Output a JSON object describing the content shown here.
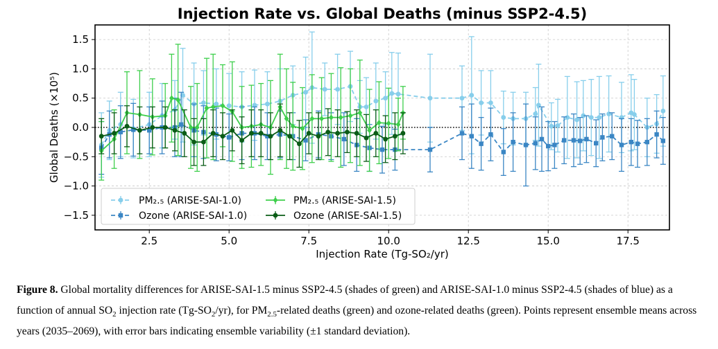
{
  "chart_data": {
    "type": "line",
    "title": "Injection Rate vs. Global Deaths (minus SSP2-4.5)",
    "xlabel": "Injection Rate (Tg-SO₂/yr)",
    "ylabel": "Global Deaths (×10⁵)",
    "xlim": [
      0.8,
      18.8
    ],
    "ylim": [
      -1.75,
      1.75
    ],
    "xticks": [
      2.5,
      5.0,
      7.5,
      10.0,
      12.5,
      15.0,
      17.5
    ],
    "xtick_labels": [
      "2.5",
      "5.0",
      "7.5",
      "10.0",
      "12.5",
      "15.0",
      "17.5"
    ],
    "yticks": [
      1.5,
      1.0,
      0.5,
      0.0,
      -0.5,
      -1.0,
      -1.5
    ],
    "ytick_labels": [
      "1.5",
      "1.0",
      "0.5",
      "0.0",
      "−0.5",
      "−1.0",
      "−1.5"
    ],
    "grid": true,
    "reference_line_y": 0.0,
    "legend": {
      "placement": "lower-left",
      "entries": [
        {
          "label": "PM₂.₅ (ARISE-SAI-1.0)",
          "series": 0
        },
        {
          "label": "Ozone (ARISE-SAI-1.0)",
          "series": 1
        },
        {
          "label": "PM₂.₅ (ARISE-SAI-1.5)",
          "series": 2
        },
        {
          "label": "Ozone (ARISE-SAI-1.5)",
          "series": 3
        }
      ]
    },
    "series": [
      {
        "name": "PM₂.₅ (ARISE-SAI-1.0)",
        "color": "#87ceeb",
        "dash": true,
        "marker": "circle",
        "points": [
          [
            1.0,
            -0.3,
            0.55
          ],
          [
            1.25,
            -0.05,
            0.5
          ],
          [
            1.6,
            0.05,
            0.55
          ],
          [
            2.0,
            -0.02,
            0.5
          ],
          [
            2.5,
            0.05,
            0.55
          ],
          [
            2.9,
            0.2,
            0.55
          ],
          [
            3.3,
            0.3,
            0.5
          ],
          [
            3.55,
            0.55,
            0.8
          ],
          [
            3.9,
            0.4,
            0.7
          ],
          [
            4.2,
            0.42,
            0.55
          ],
          [
            4.6,
            0.4,
            0.6
          ],
          [
            5.0,
            0.37,
            0.55
          ],
          [
            5.4,
            0.35,
            0.6
          ],
          [
            5.8,
            0.38,
            0.6
          ],
          [
            6.2,
            0.4,
            0.55
          ],
          [
            6.6,
            0.45,
            0.55
          ],
          [
            7.0,
            0.55,
            0.5
          ],
          [
            7.4,
            0.6,
            0.6
          ],
          [
            7.6,
            0.68,
            0.95
          ],
          [
            8.0,
            0.65,
            0.45
          ],
          [
            8.4,
            0.65,
            0.6
          ],
          [
            8.8,
            0.7,
            0.6
          ],
          [
            9.1,
            0.35,
            0.45
          ],
          [
            9.3,
            0.35,
            0.5
          ],
          [
            9.6,
            0.45,
            0.65
          ],
          [
            9.9,
            0.5,
            0.45
          ],
          [
            10.1,
            0.58,
            0.7
          ],
          [
            10.3,
            0.57,
            0.7
          ],
          [
            11.3,
            0.5,
            0.75
          ],
          [
            12.3,
            0.5,
            0.55
          ],
          [
            12.6,
            0.55,
            1.0
          ],
          [
            12.9,
            0.42,
            0.55
          ],
          [
            13.2,
            0.42,
            0.55
          ],
          [
            13.6,
            0.17,
            0.45
          ],
          [
            13.9,
            0.15,
            0.45
          ],
          [
            14.3,
            0.15,
            0.45
          ],
          [
            14.6,
            0.23,
            0.45
          ],
          [
            14.7,
            0.38,
            0.7
          ],
          [
            15.1,
            0.02,
            0.4
          ],
          [
            15.3,
            0.03,
            0.45
          ],
          [
            15.6,
            0.17,
            0.7
          ],
          [
            15.9,
            0.13,
            0.65
          ],
          [
            16.1,
            0.2,
            0.6
          ],
          [
            16.35,
            0.17,
            0.65
          ],
          [
            16.6,
            0.17,
            0.7
          ],
          [
            16.9,
            0.23,
            0.65
          ],
          [
            17.3,
            0.17,
            0.6
          ],
          [
            17.6,
            0.25,
            0.65
          ],
          [
            17.7,
            0.22,
            0.6
          ],
          [
            18.1,
            0.0,
            0.5
          ],
          [
            18.4,
            0.06,
            0.5
          ],
          [
            18.6,
            0.28,
            0.6
          ]
        ]
      },
      {
        "name": "Ozone (ARISE-SAI-1.0)",
        "color": "#3a86c4",
        "dash": true,
        "marker": "square",
        "points": [
          [
            1.0,
            -0.35,
            0.45
          ],
          [
            1.25,
            -0.12,
            0.4
          ],
          [
            1.6,
            -0.08,
            0.45
          ],
          [
            2.0,
            -0.04,
            0.45
          ],
          [
            2.5,
            -0.05,
            0.4
          ],
          [
            2.9,
            0.0,
            0.45
          ],
          [
            3.3,
            0.0,
            0.5
          ],
          [
            3.5,
            0.05,
            0.55
          ],
          [
            3.9,
            -0.05,
            0.45
          ],
          [
            4.2,
            -0.08,
            0.45
          ],
          [
            4.6,
            -0.12,
            0.45
          ],
          [
            5.0,
            -0.17,
            0.4
          ],
          [
            5.4,
            -0.1,
            0.45
          ],
          [
            5.8,
            -0.1,
            0.45
          ],
          [
            6.2,
            -0.15,
            0.4
          ],
          [
            6.6,
            -0.12,
            0.4
          ],
          [
            7.0,
            -0.15,
            0.4
          ],
          [
            7.4,
            -0.22,
            0.35
          ],
          [
            7.8,
            -0.12,
            0.4
          ],
          [
            8.2,
            -0.15,
            0.4
          ],
          [
            8.6,
            -0.2,
            0.45
          ],
          [
            9.0,
            -0.3,
            0.45
          ],
          [
            9.4,
            -0.35,
            0.4
          ],
          [
            9.8,
            -0.38,
            0.4
          ],
          [
            10.2,
            -0.38,
            0.35
          ],
          [
            11.3,
            -0.38,
            0.38
          ],
          [
            12.3,
            -0.1,
            0.45
          ],
          [
            12.6,
            -0.15,
            0.55
          ],
          [
            12.9,
            -0.28,
            0.45
          ],
          [
            13.2,
            -0.12,
            0.45
          ],
          [
            13.6,
            -0.42,
            0.4
          ],
          [
            13.9,
            -0.25,
            0.5
          ],
          [
            14.3,
            -0.3,
            0.7
          ],
          [
            14.6,
            -0.27,
            0.45
          ],
          [
            14.8,
            -0.2,
            0.55
          ],
          [
            15.0,
            -0.32,
            0.42
          ],
          [
            15.2,
            -0.3,
            0.4
          ],
          [
            15.5,
            -0.22,
            0.4
          ],
          [
            15.8,
            -0.22,
            0.45
          ],
          [
            16.0,
            -0.23,
            0.4
          ],
          [
            16.2,
            -0.2,
            0.4
          ],
          [
            16.5,
            -0.27,
            0.4
          ],
          [
            16.7,
            -0.17,
            0.4
          ],
          [
            17.0,
            -0.15,
            0.4
          ],
          [
            17.3,
            -0.3,
            0.45
          ],
          [
            17.6,
            -0.25,
            0.4
          ],
          [
            17.8,
            -0.28,
            0.4
          ],
          [
            18.1,
            -0.25,
            0.4
          ],
          [
            18.4,
            -0.12,
            0.4
          ],
          [
            18.6,
            -0.23,
            0.4
          ]
        ]
      },
      {
        "name": "PM₂.₅ (ARISE-SAI-1.5)",
        "color": "#3ecf4c",
        "dash": false,
        "marker": "diamond",
        "points": [
          [
            1.0,
            -0.4,
            0.5
          ],
          [
            1.4,
            -0.2,
            0.5
          ],
          [
            1.8,
            0.25,
            0.7
          ],
          [
            2.2,
            0.22,
            0.75
          ],
          [
            2.6,
            0.18,
            0.65
          ],
          [
            3.0,
            0.2,
            0.55
          ],
          [
            3.2,
            0.5,
            0.75
          ],
          [
            3.4,
            0.47,
            0.95
          ],
          [
            3.8,
            0.0,
            0.7
          ],
          [
            4.0,
            0.0,
            0.75
          ],
          [
            4.3,
            0.33,
            0.85
          ],
          [
            4.5,
            0.35,
            0.9
          ],
          [
            4.8,
            0.37,
            0.7
          ],
          [
            5.1,
            0.27,
            0.85
          ],
          [
            5.4,
            0.0,
            0.7
          ],
          [
            5.7,
            0.02,
            0.7
          ],
          [
            6.0,
            0.05,
            0.7
          ],
          [
            6.3,
            0.0,
            0.8
          ],
          [
            6.6,
            0.35,
            0.9
          ],
          [
            6.8,
            0.15,
            0.85
          ],
          [
            7.0,
            0.02,
            0.75
          ],
          [
            7.3,
            -0.02,
            0.7
          ],
          [
            7.6,
            0.15,
            0.75
          ],
          [
            7.9,
            0.15,
            0.7
          ],
          [
            8.2,
            0.17,
            0.75
          ],
          [
            8.5,
            0.17,
            0.85
          ],
          [
            8.8,
            0.2,
            0.8
          ],
          [
            9.1,
            0.25,
            0.9
          ],
          [
            9.4,
            -0.05,
            0.7
          ],
          [
            9.7,
            0.08,
            0.7
          ],
          [
            10.0,
            0.07,
            0.6
          ],
          [
            10.3,
            0.05,
            0.45
          ],
          [
            10.45,
            0.25,
            0.45
          ]
        ]
      },
      {
        "name": "Ozone (ARISE-SAI-1.5)",
        "color": "#0a5c16",
        "dash": false,
        "marker": "circle",
        "points": [
          [
            1.0,
            -0.15,
            0.3
          ],
          [
            1.4,
            -0.1,
            0.35
          ],
          [
            1.8,
            0.02,
            0.35
          ],
          [
            2.2,
            -0.05,
            0.4
          ],
          [
            2.6,
            0.0,
            0.35
          ],
          [
            3.0,
            0.0,
            0.35
          ],
          [
            3.3,
            -0.05,
            0.35
          ],
          [
            3.6,
            -0.1,
            0.4
          ],
          [
            3.9,
            -0.25,
            0.4
          ],
          [
            4.2,
            -0.25,
            0.4
          ],
          [
            4.5,
            -0.1,
            0.4
          ],
          [
            4.8,
            -0.15,
            0.4
          ],
          [
            5.1,
            -0.05,
            0.35
          ],
          [
            5.4,
            -0.22,
            0.4
          ],
          [
            5.7,
            -0.1,
            0.4
          ],
          [
            6.0,
            -0.1,
            0.4
          ],
          [
            6.3,
            -0.15,
            0.4
          ],
          [
            6.6,
            -0.05,
            0.45
          ],
          [
            6.9,
            -0.15,
            0.4
          ],
          [
            7.2,
            -0.28,
            0.4
          ],
          [
            7.5,
            -0.1,
            0.35
          ],
          [
            7.8,
            -0.15,
            0.4
          ],
          [
            8.1,
            -0.08,
            0.4
          ],
          [
            8.4,
            -0.1,
            0.4
          ],
          [
            8.7,
            -0.08,
            0.35
          ],
          [
            9.0,
            -0.1,
            0.4
          ],
          [
            9.3,
            -0.18,
            0.4
          ],
          [
            9.6,
            -0.1,
            0.4
          ],
          [
            9.9,
            -0.2,
            0.4
          ],
          [
            10.2,
            -0.15,
            0.4
          ],
          [
            10.45,
            -0.1,
            0.35
          ]
        ]
      }
    ]
  },
  "caption": {
    "figure_label": "Figure 8.",
    "p1": " Global mortality differences for ARISE-SAI-1.5 minus SSP2-4.5 (shades of green) and ARISE-SAI-1.0 minus SSP2-4.5 (shades of blue) as a function of annual SO",
    "sub1": "2",
    "p2": " injection rate (Tg-SO",
    "sub2": "2",
    "p3": "/yr), for PM",
    "sub3": "2.5",
    "p4": "-related deaths (green) and ozone-related deaths (green). Points represent ensemble means across years (2035–2069), with error bars indicating ensemble variability (±1 standard deviation)."
  }
}
